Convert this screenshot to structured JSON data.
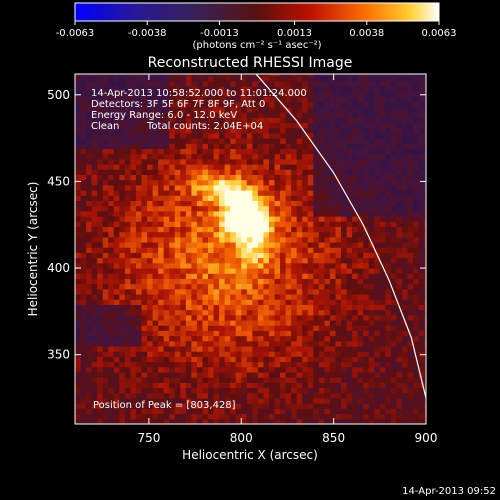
{
  "colorbar": {
    "ticks": [
      "-0.0063",
      "-0.0038",
      "-0.0013",
      "0.0013",
      "0.0038",
      "0.0063"
    ],
    "unit_label": "(photons cm⁻² s⁻¹ asec⁻²)",
    "range": [
      -0.0063,
      0.0063
    ]
  },
  "chart_data": {
    "type": "heatmap",
    "title": "Reconstructed RHESSI Image",
    "xlabel": "Heliocentric X (arcsec)",
    "ylabel": "Heliocentric Y (arcsec)",
    "xlim": [
      710,
      900
    ],
    "ylim": [
      310,
      512
    ],
    "x_ticks": [
      750,
      800,
      850,
      900
    ],
    "y_ticks": [
      350,
      400,
      450,
      500
    ],
    "grid": false,
    "annotations": [
      "14-Apr-2013 10:58:52.000 to 11:01:24.000",
      "Detectors: 3F 5F 6F 7F 8F 9F, Att 0",
      "Energy Range: 6.0 - 12.0 keV",
      "Clean",
      "Total counts: 2.04E+04"
    ],
    "peak_label": "Position of Peak = [803,428]",
    "peak": [
      803,
      428
    ],
    "limb_points": [
      [
        808,
        512
      ],
      [
        830,
        485
      ],
      [
        850,
        455
      ],
      [
        866,
        425
      ],
      [
        880,
        393
      ],
      [
        892,
        360
      ],
      [
        900,
        325
      ],
      [
        903,
        310
      ]
    ]
  },
  "footer_timestamp": "14-Apr-2013 09:52"
}
